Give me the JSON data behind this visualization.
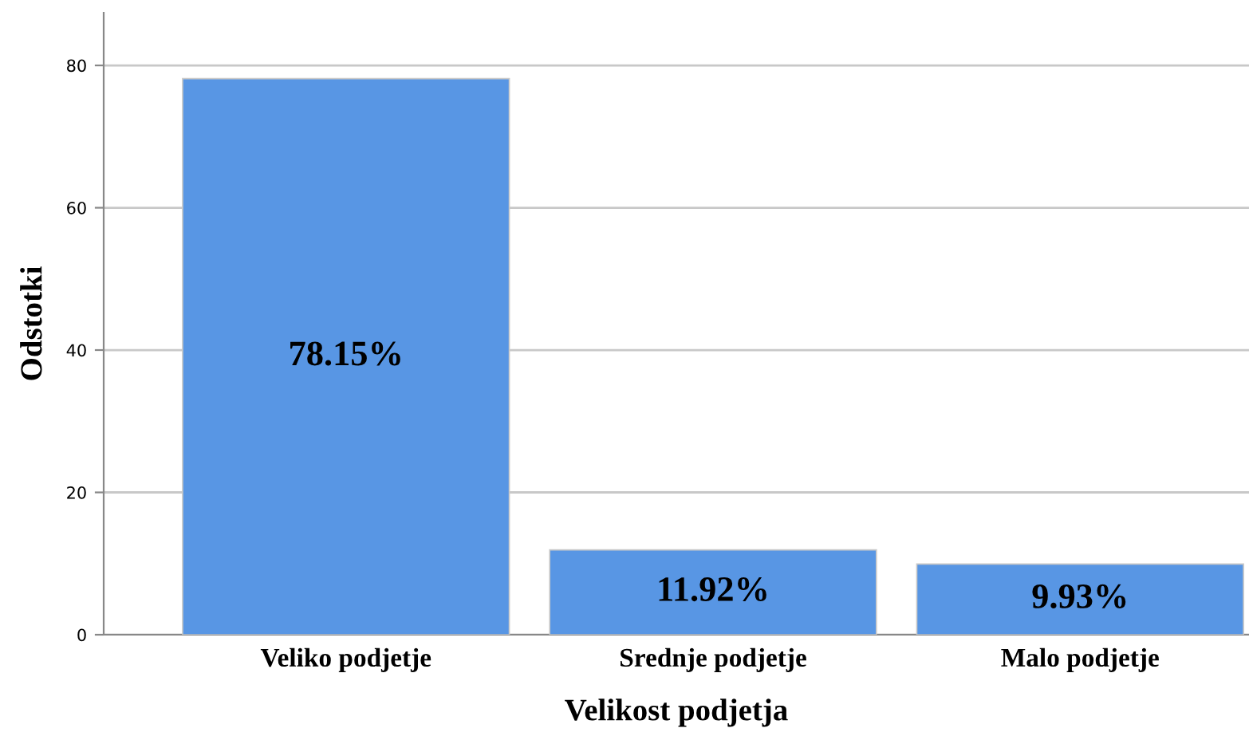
{
  "chart_data": {
    "type": "bar",
    "xlabel": "Velikost podjetja",
    "ylabel": "Odstotki",
    "categories": [
      "Veliko podjetje",
      "Srednje podjetje",
      "Malo podjetje"
    ],
    "values": [
      78.15,
      11.92,
      9.93
    ],
    "color": "#5896e4",
    "value_labels": [
      "78.15%",
      "11.92%",
      "9.93%"
    ],
    "ylim": [
      0,
      87.4
    ],
    "yticks": [
      0,
      20,
      40,
      60,
      80
    ],
    "grid": "y"
  }
}
